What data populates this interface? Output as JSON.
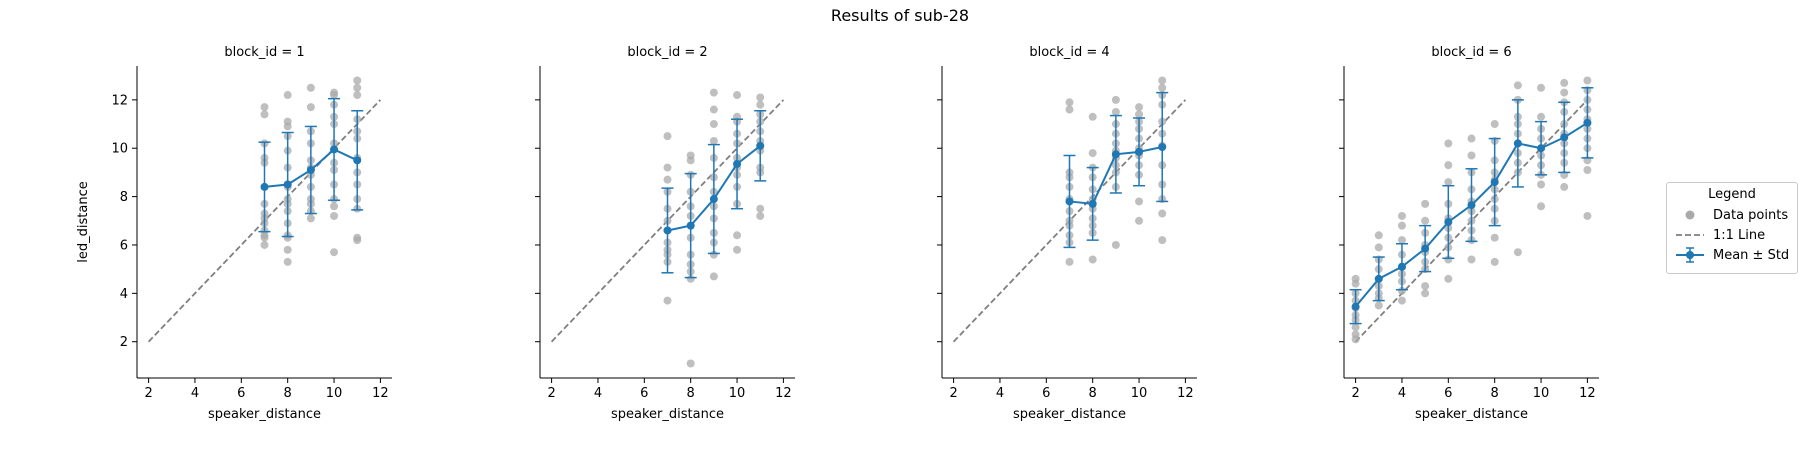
{
  "suptitle": "Results of sub-28",
  "colors": {
    "mean": "#1f77b4",
    "points": "#a9a9a9",
    "identity": "#7f7f7f"
  },
  "legend": {
    "title": "Legend",
    "entries": [
      {
        "label": "Data points",
        "icon": "circle-marker-icon"
      },
      {
        "label": "1:1 Line",
        "icon": "dashed-line-icon"
      },
      {
        "label": "Mean ± Std",
        "icon": "errorbar-line-icon"
      }
    ],
    "placement": "right"
  },
  "chart_data": [
    {
      "type": "scatter",
      "title": "block_id = 1",
      "xlabel": "speaker_distance",
      "ylabel": "led_distance",
      "xlim": [
        1.5,
        12.5
      ],
      "ylim": [
        0.5,
        13.4
      ],
      "xticks": [
        2,
        4,
        6,
        8,
        10,
        12
      ],
      "yticks": [
        2,
        4,
        6,
        8,
        10,
        12
      ],
      "identity_line": [
        [
          2,
          2
        ],
        [
          12,
          12
        ]
      ],
      "points": [
        [
          7,
          11.7
        ],
        [
          7,
          11.4
        ],
        [
          7,
          10.2
        ],
        [
          7,
          9.6
        ],
        [
          7,
          9.4
        ],
        [
          7,
          7.7
        ],
        [
          7,
          7.3
        ],
        [
          7,
          7.1
        ],
        [
          7,
          6.9
        ],
        [
          7,
          6.6
        ],
        [
          7,
          6.4
        ],
        [
          7,
          6.3
        ],
        [
          7,
          6.0
        ],
        [
          8,
          12.2
        ],
        [
          8,
          11.1
        ],
        [
          8,
          10.9
        ],
        [
          8,
          10.5
        ],
        [
          8,
          9.9
        ],
        [
          8,
          9.2
        ],
        [
          8,
          8.4
        ],
        [
          8,
          7.9
        ],
        [
          8,
          7.7
        ],
        [
          8,
          7.4
        ],
        [
          8,
          6.9
        ],
        [
          8,
          6.4
        ],
        [
          8,
          6.3
        ],
        [
          8,
          5.8
        ],
        [
          8,
          5.3
        ],
        [
          9,
          12.5
        ],
        [
          9,
          11.7
        ],
        [
          9,
          10.7
        ],
        [
          9,
          10.2
        ],
        [
          9,
          9.5
        ],
        [
          9,
          9.2
        ],
        [
          9,
          8.9
        ],
        [
          9,
          8.4
        ],
        [
          9,
          7.9
        ],
        [
          9,
          7.7
        ],
        [
          9,
          7.4
        ],
        [
          9,
          7.1
        ],
        [
          10,
          12.3
        ],
        [
          10,
          12.2
        ],
        [
          10,
          11.8
        ],
        [
          10,
          11.3
        ],
        [
          10,
          11.0
        ],
        [
          10,
          10.2
        ],
        [
          10,
          9.4
        ],
        [
          10,
          9.1
        ],
        [
          10,
          8.5
        ],
        [
          10,
          7.9
        ],
        [
          10,
          7.6
        ],
        [
          10,
          7.2
        ],
        [
          10,
          5.7
        ],
        [
          11,
          12.8
        ],
        [
          11,
          12.5
        ],
        [
          11,
          12.2
        ],
        [
          11,
          11.2
        ],
        [
          11,
          10.7
        ],
        [
          11,
          10.4
        ],
        [
          11,
          9.6
        ],
        [
          11,
          9.0
        ],
        [
          11,
          8.5
        ],
        [
          11,
          7.9
        ],
        [
          11,
          7.5
        ],
        [
          11,
          6.3
        ],
        [
          11,
          6.2
        ]
      ],
      "series": [
        {
          "name": "Mean ± Std",
          "x": [
            7,
            8,
            9,
            10,
            11
          ],
          "mean": [
            8.4,
            8.5,
            9.1,
            9.95,
            9.5
          ],
          "std": [
            1.85,
            2.15,
            1.8,
            2.1,
            2.05
          ]
        }
      ]
    },
    {
      "type": "scatter",
      "title": "block_id = 2",
      "xlabel": "speaker_distance",
      "ylabel": "",
      "xlim": [
        1.5,
        12.5
      ],
      "ylim": [
        0.5,
        13.4
      ],
      "xticks": [
        2,
        4,
        6,
        8,
        10,
        12
      ],
      "yticks": [
        2,
        4,
        6,
        8,
        10,
        12
      ],
      "identity_line": [
        [
          2,
          2
        ],
        [
          12,
          12
        ]
      ],
      "points": [
        [
          7,
          10.5
        ],
        [
          7,
          9.2
        ],
        [
          7,
          8.7
        ],
        [
          7,
          8.2
        ],
        [
          7,
          7.5
        ],
        [
          7,
          7.0
        ],
        [
          7,
          6.6
        ],
        [
          7,
          6.1
        ],
        [
          7,
          5.8
        ],
        [
          7,
          5.6
        ],
        [
          7,
          5.3
        ],
        [
          7,
          3.7
        ],
        [
          8,
          9.7
        ],
        [
          8,
          9.5
        ],
        [
          8,
          8.9
        ],
        [
          8,
          8.2
        ],
        [
          8,
          7.6
        ],
        [
          8,
          7.2
        ],
        [
          8,
          6.8
        ],
        [
          8,
          6.3
        ],
        [
          8,
          5.6
        ],
        [
          8,
          5.2
        ],
        [
          8,
          4.9
        ],
        [
          8,
          4.6
        ],
        [
          8,
          1.1
        ],
        [
          9,
          12.3
        ],
        [
          9,
          11.6
        ],
        [
          9,
          11.0
        ],
        [
          9,
          10.3
        ],
        [
          9,
          9.6
        ],
        [
          9,
          8.8
        ],
        [
          9,
          8.2
        ],
        [
          9,
          7.6
        ],
        [
          9,
          7.1
        ],
        [
          9,
          6.5
        ],
        [
          9,
          6.1
        ],
        [
          9,
          5.6
        ],
        [
          9,
          4.7
        ],
        [
          10,
          12.2
        ],
        [
          10,
          11.3
        ],
        [
          10,
          11.1
        ],
        [
          10,
          10.6
        ],
        [
          10,
          10.2
        ],
        [
          10,
          9.6
        ],
        [
          10,
          9.2
        ],
        [
          10,
          8.9
        ],
        [
          10,
          8.4
        ],
        [
          10,
          7.7
        ],
        [
          10,
          6.4
        ],
        [
          10,
          5.8
        ],
        [
          11,
          12.1
        ],
        [
          11,
          11.8
        ],
        [
          11,
          11.4
        ],
        [
          11,
          11.1
        ],
        [
          11,
          10.7
        ],
        [
          11,
          10.3
        ],
        [
          11,
          9.9
        ],
        [
          11,
          9.2
        ],
        [
          11,
          9.0
        ],
        [
          11,
          7.5
        ],
        [
          11,
          7.2
        ]
      ],
      "series": [
        {
          "name": "Mean ± Std",
          "x": [
            7,
            8,
            9,
            10,
            11
          ],
          "mean": [
            6.6,
            6.8,
            7.9,
            9.35,
            10.1
          ],
          "std": [
            1.75,
            2.15,
            2.25,
            1.85,
            1.45
          ]
        }
      ]
    },
    {
      "type": "scatter",
      "title": "block_id = 4",
      "xlabel": "speaker_distance",
      "ylabel": "",
      "xlim": [
        1.5,
        12.5
      ],
      "ylim": [
        0.5,
        13.4
      ],
      "xticks": [
        2,
        4,
        6,
        8,
        10,
        12
      ],
      "yticks": [
        2,
        4,
        6,
        8,
        10,
        12
      ],
      "identity_line": [
        [
          2,
          2
        ],
        [
          12,
          12
        ]
      ],
      "points": [
        [
          7,
          11.9
        ],
        [
          7,
          11.6
        ],
        [
          7,
          9.0
        ],
        [
          7,
          8.8
        ],
        [
          7,
          8.4
        ],
        [
          7,
          7.9
        ],
        [
          7,
          7.4
        ],
        [
          7,
          7.0
        ],
        [
          7,
          6.8
        ],
        [
          7,
          6.4
        ],
        [
          7,
          6.1
        ],
        [
          7,
          5.3
        ],
        [
          8,
          11.3
        ],
        [
          8,
          9.8
        ],
        [
          8,
          9.2
        ],
        [
          8,
          8.8
        ],
        [
          8,
          8.3
        ],
        [
          8,
          7.9
        ],
        [
          8,
          7.5
        ],
        [
          8,
          7.1
        ],
        [
          8,
          6.8
        ],
        [
          8,
          6.5
        ],
        [
          8,
          5.4
        ],
        [
          9,
          12.0
        ],
        [
          9,
          11.5
        ],
        [
          9,
          11.0
        ],
        [
          9,
          10.6
        ],
        [
          9,
          10.2
        ],
        [
          9,
          9.9
        ],
        [
          9,
          9.6
        ],
        [
          9,
          9.3
        ],
        [
          9,
          9.0
        ],
        [
          9,
          8.4
        ],
        [
          9,
          6.0
        ],
        [
          10,
          11.7
        ],
        [
          10,
          11.4
        ],
        [
          10,
          11.1
        ],
        [
          10,
          10.8
        ],
        [
          10,
          10.4
        ],
        [
          10,
          10.0
        ],
        [
          10,
          9.7
        ],
        [
          10,
          9.3
        ],
        [
          10,
          8.9
        ],
        [
          10,
          7.8
        ],
        [
          10,
          7.0
        ],
        [
          11,
          12.8
        ],
        [
          11,
          12.5
        ],
        [
          11,
          12.2
        ],
        [
          11,
          11.8
        ],
        [
          11,
          11.1
        ],
        [
          11,
          10.6
        ],
        [
          11,
          10.1
        ],
        [
          11,
          9.3
        ],
        [
          11,
          8.5
        ],
        [
          11,
          7.9
        ],
        [
          11,
          7.3
        ],
        [
          11,
          6.2
        ]
      ],
      "series": [
        {
          "name": "Mean ± Std",
          "x": [
            7,
            8,
            9,
            10,
            11
          ],
          "mean": [
            7.8,
            7.7,
            9.75,
            9.85,
            10.05
          ],
          "std": [
            1.9,
            1.5,
            1.6,
            1.4,
            2.25
          ]
        }
      ]
    },
    {
      "type": "scatter",
      "title": "block_id = 6",
      "xlabel": "speaker_distance",
      "ylabel": "",
      "xlim": [
        1.5,
        12.5
      ],
      "ylim": [
        0.5,
        13.4
      ],
      "xticks": [
        2,
        4,
        6,
        8,
        10,
        12
      ],
      "yticks": [
        2,
        4,
        6,
        8,
        10,
        12
      ],
      "identity_line": [
        [
          2,
          2
        ],
        [
          12,
          12
        ]
      ],
      "points": [
        [
          2,
          4.6
        ],
        [
          2,
          4.4
        ],
        [
          2,
          4.0
        ],
        [
          2,
          3.7
        ],
        [
          2,
          3.4
        ],
        [
          2,
          3.1
        ],
        [
          2,
          2.9
        ],
        [
          2,
          2.6
        ],
        [
          2,
          2.3
        ],
        [
          2,
          2.1
        ],
        [
          3,
          6.4
        ],
        [
          3,
          5.9
        ],
        [
          3,
          5.4
        ],
        [
          3,
          5.0
        ],
        [
          3,
          4.6
        ],
        [
          3,
          4.3
        ],
        [
          3,
          4.0
        ],
        [
          3,
          3.8
        ],
        [
          3,
          3.5
        ],
        [
          4,
          7.2
        ],
        [
          4,
          6.8
        ],
        [
          4,
          6.2
        ],
        [
          4,
          5.6
        ],
        [
          4,
          5.1
        ],
        [
          4,
          4.8
        ],
        [
          4,
          4.5
        ],
        [
          4,
          4.1
        ],
        [
          4,
          3.7
        ],
        [
          5,
          7.7
        ],
        [
          5,
          7.0
        ],
        [
          5,
          6.5
        ],
        [
          5,
          6.0
        ],
        [
          5,
          5.7
        ],
        [
          5,
          5.3
        ],
        [
          5,
          5.0
        ],
        [
          5,
          4.3
        ],
        [
          5,
          4.0
        ],
        [
          6,
          10.2
        ],
        [
          6,
          9.3
        ],
        [
          6,
          8.6
        ],
        [
          6,
          7.7
        ],
        [
          6,
          7.1
        ],
        [
          6,
          6.7
        ],
        [
          6,
          6.3
        ],
        [
          6,
          5.9
        ],
        [
          6,
          5.4
        ],
        [
          6,
          4.6
        ],
        [
          7,
          10.4
        ],
        [
          7,
          9.7
        ],
        [
          7,
          9.0
        ],
        [
          7,
          8.3
        ],
        [
          7,
          7.8
        ],
        [
          7,
          7.4
        ],
        [
          7,
          7.0
        ],
        [
          7,
          6.6
        ],
        [
          7,
          6.2
        ],
        [
          7,
          5.4
        ],
        [
          8,
          11.0
        ],
        [
          8,
          10.3
        ],
        [
          8,
          9.5
        ],
        [
          8,
          9.0
        ],
        [
          8,
          8.7
        ],
        [
          8,
          8.3
        ],
        [
          8,
          7.9
        ],
        [
          8,
          7.5
        ],
        [
          8,
          7.0
        ],
        [
          8,
          6.3
        ],
        [
          8,
          5.3
        ],
        [
          9,
          12.6
        ],
        [
          9,
          12.0
        ],
        [
          9,
          11.3
        ],
        [
          9,
          11.0
        ],
        [
          9,
          10.6
        ],
        [
          9,
          10.2
        ],
        [
          9,
          9.8
        ],
        [
          9,
          9.4
        ],
        [
          9,
          9.0
        ],
        [
          9,
          5.7
        ],
        [
          10,
          12.5
        ],
        [
          10,
          11.3
        ],
        [
          10,
          10.8
        ],
        [
          10,
          10.4
        ],
        [
          10,
          10.0
        ],
        [
          10,
          9.7
        ],
        [
          10,
          9.3
        ],
        [
          10,
          8.9
        ],
        [
          10,
          8.5
        ],
        [
          10,
          7.6
        ],
        [
          11,
          12.7
        ],
        [
          11,
          12.3
        ],
        [
          11,
          11.9
        ],
        [
          11,
          11.5
        ],
        [
          11,
          11.0
        ],
        [
          11,
          10.6
        ],
        [
          11,
          10.2
        ],
        [
          11,
          9.8
        ],
        [
          11,
          9.4
        ],
        [
          11,
          8.9
        ],
        [
          11,
          8.4
        ],
        [
          12,
          12.8
        ],
        [
          12,
          12.4
        ],
        [
          12,
          12.0
        ],
        [
          12,
          11.6
        ],
        [
          12,
          11.2
        ],
        [
          12,
          10.8
        ],
        [
          12,
          10.4
        ],
        [
          12,
          10.0
        ],
        [
          12,
          9.5
        ],
        [
          12,
          9.1
        ],
        [
          12,
          7.2
        ]
      ],
      "series": [
        {
          "name": "Mean ± Std",
          "x": [
            2,
            3,
            4,
            5,
            6,
            7,
            8,
            9,
            10,
            11,
            12
          ],
          "mean": [
            3.45,
            4.6,
            5.1,
            5.85,
            6.95,
            7.65,
            8.6,
            10.2,
            10.0,
            10.45,
            11.05
          ],
          "std": [
            0.7,
            0.9,
            0.95,
            0.95,
            1.5,
            1.5,
            1.8,
            1.8,
            1.1,
            1.45,
            1.45
          ]
        }
      ]
    }
  ]
}
